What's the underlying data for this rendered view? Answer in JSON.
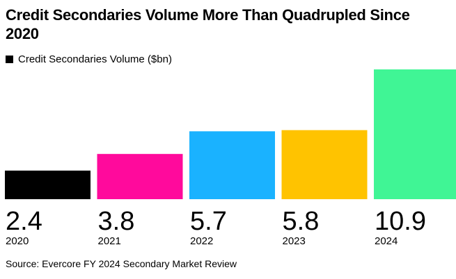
{
  "title": "Credit Secondaries Volume More Than Quadrupled Since 2020",
  "legend": {
    "label": "Credit Secondaries Volume ($bn)"
  },
  "source": "Source: Evercore FY 2024 Secondary Market Review",
  "chart_data": {
    "type": "bar",
    "title": "Credit Secondaries Volume More Than Quadrupled Since 2020",
    "categories": [
      "2020",
      "2021",
      "2022",
      "2023",
      "2024"
    ],
    "value_labels": [
      "2.4",
      "3.8",
      "5.7",
      "5.8",
      "10.9"
    ],
    "series": [
      {
        "name": "Credit Secondaries Volume ($bn)",
        "values": [
          2.4,
          3.8,
          5.7,
          5.8,
          10.9
        ]
      }
    ],
    "colors": [
      "#000000",
      "#ff0a9c",
      "#1ab2ff",
      "#ffc300",
      "#40f595"
    ],
    "ylim": [
      0,
      10.9
    ],
    "grid": false,
    "legend_position": "top-left"
  }
}
